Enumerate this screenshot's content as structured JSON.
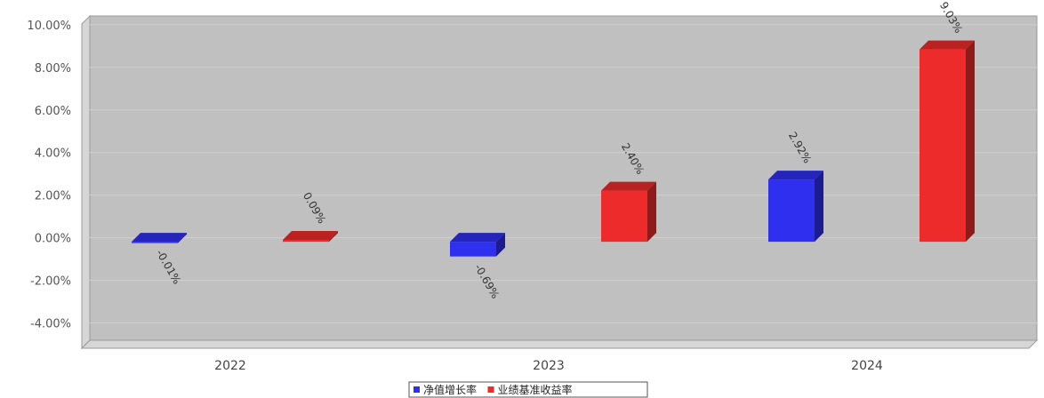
{
  "chart_data": {
    "type": "bar",
    "title": "",
    "xlabel": "",
    "ylabel": "",
    "categories": [
      "2022",
      "2023",
      "2024"
    ],
    "series": [
      {
        "name": "净值增长率",
        "values": [
          -0.01,
          -0.69,
          2.92
        ],
        "labels": [
          "-0.01%",
          "-0.69%",
          "2.92%"
        ]
      },
      {
        "name": "业绩基准收益率",
        "values": [
          0.09,
          2.4,
          9.03
        ],
        "labels": [
          "0.09%",
          "2.40%",
          "9.03%"
        ]
      }
    ],
    "ylim": [
      -5.0,
      10.6
    ],
    "yticks": [
      10,
      8,
      6,
      4,
      2,
      0,
      -2,
      -4
    ],
    "ytick_labels": [
      "10.00%",
      "8.00%",
      "6.00%",
      "4.00%",
      "2.00%",
      "0.00%",
      "-2.00%",
      "-4.00%"
    ],
    "grid": true,
    "legend_position": "bottom-center",
    "colors": {
      "series": [
        "#2f2ff0",
        "#ee2b2b"
      ],
      "plot_background": "#c0c0c0",
      "plot_wall": "#d6d6d6"
    }
  }
}
